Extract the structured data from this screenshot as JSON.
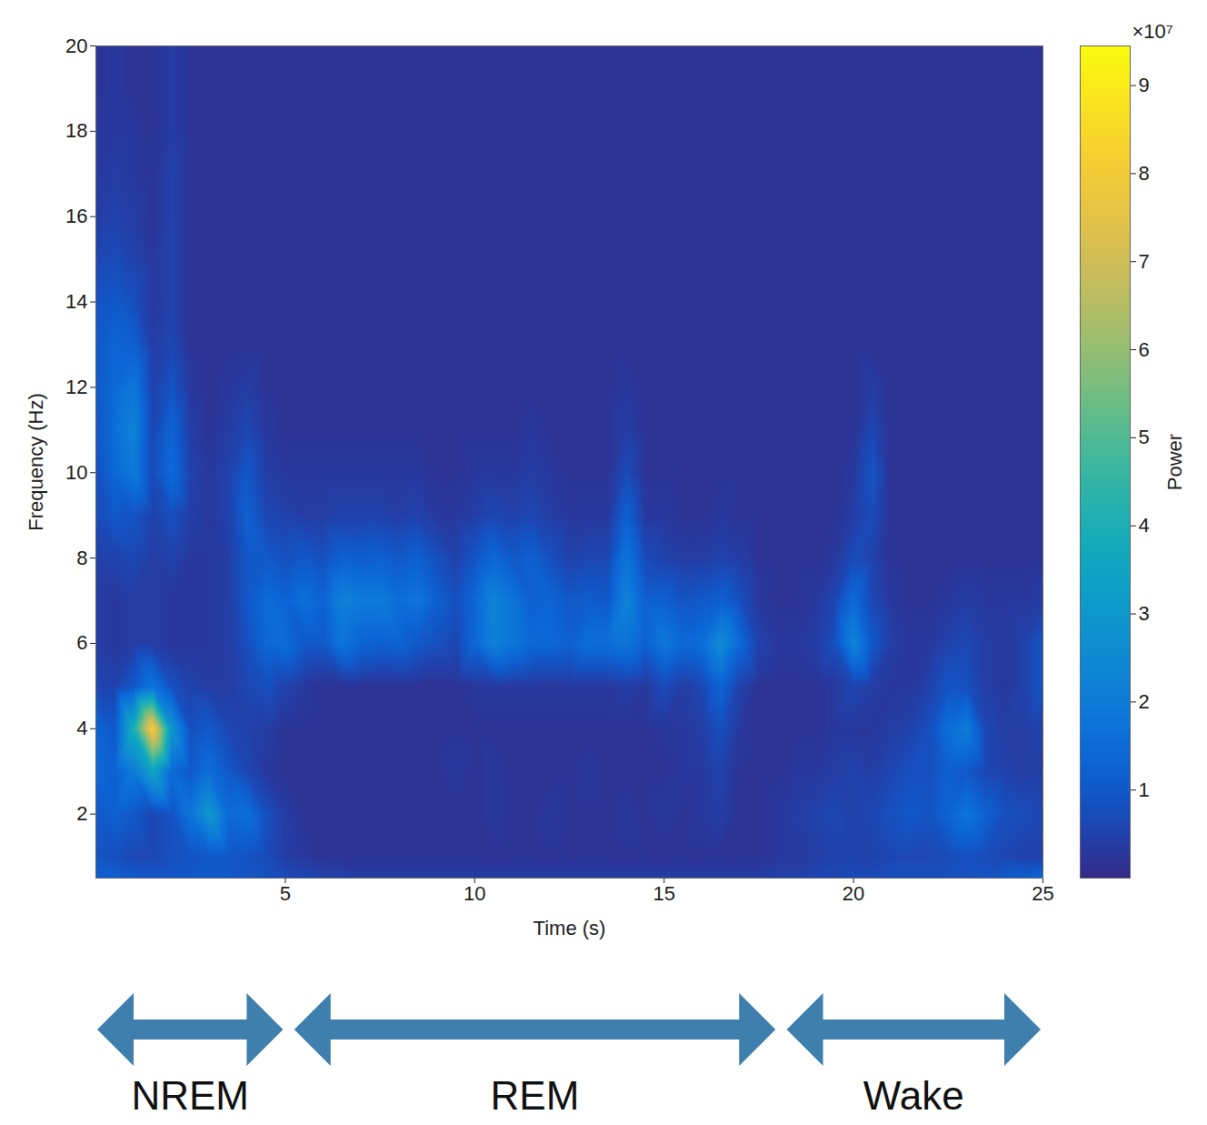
{
  "chart_data": {
    "type": "heatmap",
    "xlabel": "Time (s)",
    "ylabel": "Frequency (Hz)",
    "xlim": [
      0,
      25
    ],
    "xticks": [
      5,
      10,
      15,
      20,
      25
    ],
    "ylim": [
      0.5,
      20
    ],
    "yticks": [
      2,
      4,
      6,
      8,
      10,
      12,
      14,
      16,
      18,
      20
    ],
    "x": [
      0,
      0.5,
      1,
      1.5,
      2,
      2.5,
      3,
      3.5,
      4,
      4.5,
      5,
      5.5,
      6,
      6.5,
      7,
      7.5,
      8,
      8.5,
      9,
      9.5,
      10,
      10.5,
      11,
      11.5,
      12,
      12.5,
      13,
      13.5,
      14,
      14.5,
      15,
      15.5,
      16,
      16.5,
      17,
      17.5,
      18,
      18.5,
      19,
      19.5,
      20,
      20.5,
      21,
      21.5,
      22,
      22.5,
      23,
      23.5,
      24,
      24.5,
      25
    ],
    "y": [
      0.5,
      1,
      2,
      3,
      4,
      5,
      6,
      7,
      8,
      9,
      10,
      11,
      12,
      13,
      14,
      15,
      16,
      17,
      18,
      19,
      20
    ],
    "values": [
      [
        1.2,
        1.2,
        1.1,
        1.0,
        1.0,
        1.0,
        1.0,
        1.0,
        0.9,
        0.8,
        0.7,
        0.6,
        0.5,
        0.5,
        0.4,
        0.4,
        0.4,
        0.4,
        0.4,
        0.4,
        0.4,
        0.4,
        0.4,
        0.4,
        0.4,
        0.4,
        0.4,
        0.4,
        0.4,
        0.4,
        0.4,
        0.4,
        0.4,
        0.4,
        0.4,
        0.4,
        0.5,
        0.5,
        0.6,
        0.6,
        0.7,
        0.7,
        0.8,
        0.8,
        0.8,
        0.8,
        0.8,
        0.9,
        1.0,
        1.2,
        1.4
      ],
      [
        0.9,
        0.8,
        0.6,
        0.6,
        0.8,
        0.9,
        1.0,
        1.0,
        0.9,
        0.7,
        0.4,
        0.3,
        0.2,
        0.2,
        0.2,
        0.2,
        0.2,
        0.2,
        0.2,
        0.2,
        0.2,
        0.2,
        0.2,
        0.2,
        0.2,
        0.2,
        0.2,
        0.2,
        0.2,
        0.2,
        0.2,
        0.2,
        0.2,
        0.2,
        0.2,
        0.2,
        0.3,
        0.3,
        0.4,
        0.5,
        0.5,
        0.5,
        0.6,
        0.6,
        0.6,
        0.7,
        0.8,
        0.7,
        0.6,
        0.5,
        0.5
      ],
      [
        1.0,
        1.2,
        1.0,
        0.6,
        0.9,
        1.8,
        3.0,
        1.5,
        1.6,
        0.8,
        0.4,
        0.2,
        0.2,
        0.2,
        0.2,
        0.2,
        0.2,
        0.2,
        0.2,
        0.2,
        0.2,
        0.3,
        0.2,
        0.2,
        0.3,
        0.2,
        0.2,
        0.2,
        0.3,
        0.2,
        0.3,
        0.2,
        0.3,
        0.4,
        0.2,
        0.2,
        0.3,
        0.4,
        0.5,
        0.6,
        0.5,
        0.6,
        0.8,
        1.0,
        0.9,
        1.3,
        1.8,
        1.2,
        0.8,
        0.7,
        0.6
      ],
      [
        1.4,
        1.2,
        2.0,
        3.5,
        1.5,
        1.0,
        1.6,
        1.0,
        0.6,
        0.3,
        0.2,
        0.2,
        0.2,
        0.2,
        0.2,
        0.2,
        0.2,
        0.2,
        0.2,
        0.3,
        0.2,
        0.3,
        0.2,
        0.2,
        0.2,
        0.2,
        0.3,
        0.2,
        0.2,
        0.2,
        0.2,
        0.3,
        0.3,
        0.5,
        0.2,
        0.2,
        0.2,
        0.3,
        0.3,
        0.4,
        0.5,
        0.4,
        0.6,
        0.8,
        0.8,
        1.2,
        1.0,
        0.6,
        0.5,
        0.4,
        0.4
      ],
      [
        1.3,
        1.0,
        4.0,
        8.2,
        3.0,
        0.8,
        1.0,
        0.6,
        0.5,
        0.4,
        0.2,
        0.2,
        0.2,
        0.2,
        0.2,
        0.2,
        0.2,
        0.2,
        0.2,
        0.2,
        0.2,
        0.2,
        0.2,
        0.2,
        0.2,
        0.2,
        0.2,
        0.2,
        0.2,
        0.2,
        0.3,
        0.3,
        0.4,
        0.8,
        0.3,
        0.2,
        0.2,
        0.2,
        0.2,
        0.3,
        0.3,
        0.3,
        0.4,
        0.5,
        0.8,
        1.6,
        2.0,
        0.6,
        0.4,
        0.4,
        0.5
      ],
      [
        0.6,
        0.5,
        1.0,
        1.8,
        0.8,
        0.5,
        0.4,
        0.4,
        0.6,
        0.8,
        0.5,
        0.3,
        0.2,
        0.2,
        0.2,
        0.2,
        0.2,
        0.2,
        0.2,
        0.2,
        0.3,
        0.3,
        0.3,
        0.3,
        0.3,
        0.3,
        0.3,
        0.3,
        0.4,
        0.3,
        0.7,
        0.4,
        0.6,
        1.3,
        0.5,
        0.2,
        0.2,
        0.2,
        0.2,
        0.3,
        0.6,
        0.4,
        0.3,
        0.3,
        0.5,
        0.9,
        0.8,
        0.4,
        0.3,
        0.5,
        0.9
      ],
      [
        0.4,
        0.3,
        0.4,
        0.4,
        0.3,
        0.3,
        0.3,
        0.4,
        0.8,
        1.4,
        1.6,
        1.0,
        1.0,
        1.8,
        1.3,
        1.2,
        1.3,
        1.0,
        0.8,
        0.6,
        1.4,
        2.2,
        1.8,
        1.4,
        1.4,
        1.2,
        1.6,
        1.6,
        1.8,
        1.2,
        1.9,
        1.4,
        1.6,
        2.6,
        1.4,
        0.5,
        0.3,
        0.3,
        0.4,
        0.8,
        2.3,
        1.0,
        0.4,
        0.3,
        0.3,
        0.5,
        0.6,
        0.4,
        0.3,
        0.5,
        0.9
      ],
      [
        0.4,
        0.3,
        0.4,
        0.4,
        0.3,
        0.3,
        0.3,
        0.4,
        1.0,
        1.5,
        1.3,
        1.6,
        1.3,
        2.2,
        2.0,
        2.0,
        1.6,
        1.8,
        1.2,
        0.8,
        1.4,
        2.3,
        1.8,
        1.2,
        1.3,
        1.0,
        1.1,
        1.0,
        2.3,
        1.2,
        1.2,
        0.9,
        1.0,
        1.2,
        0.8,
        0.3,
        0.2,
        0.2,
        0.3,
        0.6,
        1.5,
        0.6,
        0.3,
        0.2,
        0.2,
        0.3,
        0.4,
        0.3,
        0.3,
        0.3,
        0.4
      ],
      [
        0.5,
        0.5,
        0.6,
        0.4,
        0.5,
        0.3,
        0.3,
        0.4,
        1.0,
        1.0,
        0.8,
        1.0,
        0.8,
        1.2,
        1.1,
        1.2,
        1.0,
        1.2,
        0.8,
        0.5,
        0.9,
        1.4,
        1.0,
        1.2,
        0.8,
        0.5,
        0.6,
        0.6,
        1.8,
        0.7,
        0.5,
        0.4,
        0.4,
        0.5,
        0.4,
        0.2,
        0.2,
        0.2,
        0.2,
        0.3,
        0.7,
        0.5,
        0.2,
        0.2,
        0.2,
        0.2,
        0.2,
        0.2,
        0.2,
        0.2,
        0.2
      ],
      [
        0.7,
        1.0,
        0.9,
        0.5,
        0.8,
        0.4,
        0.3,
        0.5,
        1.2,
        0.6,
        0.5,
        0.4,
        0.4,
        0.5,
        0.5,
        0.5,
        0.4,
        0.5,
        0.3,
        0.3,
        0.4,
        0.6,
        0.5,
        0.6,
        0.4,
        0.3,
        0.3,
        0.3,
        1.2,
        0.3,
        0.3,
        0.2,
        0.2,
        0.3,
        0.2,
        0.2,
        0.2,
        0.2,
        0.2,
        0.2,
        0.4,
        0.7,
        0.2,
        0.2,
        0.2,
        0.2,
        0.2,
        0.2,
        0.2,
        0.2,
        0.2
      ],
      [
        0.8,
        1.4,
        2.0,
        0.7,
        1.5,
        0.5,
        0.3,
        0.5,
        1.0,
        0.4,
        0.3,
        0.3,
        0.3,
        0.3,
        0.3,
        0.3,
        0.3,
        0.3,
        0.2,
        0.2,
        0.3,
        0.3,
        0.3,
        0.4,
        0.3,
        0.2,
        0.2,
        0.2,
        0.7,
        0.2,
        0.2,
        0.2,
        0.2,
        0.2,
        0.2,
        0.2,
        0.2,
        0.2,
        0.2,
        0.2,
        0.3,
        0.9,
        0.2,
        0.2,
        0.2,
        0.2,
        0.2,
        0.2,
        0.2,
        0.2,
        0.2
      ],
      [
        0.9,
        1.6,
        2.3,
        0.6,
        1.3,
        0.4,
        0.2,
        0.4,
        0.6,
        0.3,
        0.2,
        0.2,
        0.2,
        0.2,
        0.2,
        0.2,
        0.2,
        0.2,
        0.2,
        0.2,
        0.2,
        0.2,
        0.2,
        0.3,
        0.2,
        0.2,
        0.2,
        0.2,
        0.4,
        0.2,
        0.2,
        0.2,
        0.2,
        0.2,
        0.2,
        0.2,
        0.2,
        0.2,
        0.2,
        0.2,
        0.2,
        0.6,
        0.2,
        0.2,
        0.2,
        0.2,
        0.2,
        0.2,
        0.2,
        0.2,
        0.2
      ],
      [
        1.0,
        1.5,
        1.8,
        0.5,
        0.9,
        0.3,
        0.2,
        0.3,
        0.4,
        0.2,
        0.2,
        0.2,
        0.2,
        0.2,
        0.2,
        0.2,
        0.2,
        0.2,
        0.2,
        0.2,
        0.2,
        0.2,
        0.2,
        0.2,
        0.2,
        0.2,
        0.2,
        0.2,
        0.3,
        0.2,
        0.2,
        0.2,
        0.2,
        0.2,
        0.2,
        0.2,
        0.2,
        0.2,
        0.2,
        0.2,
        0.2,
        0.4,
        0.2,
        0.2,
        0.2,
        0.2,
        0.2,
        0.2,
        0.2,
        0.2,
        0.2
      ],
      [
        1.0,
        1.3,
        1.2,
        0.4,
        0.6,
        0.2,
        0.2,
        0.2,
        0.2,
        0.2,
        0.2,
        0.2,
        0.2,
        0.2,
        0.2,
        0.2,
        0.2,
        0.2,
        0.2,
        0.2,
        0.2,
        0.2,
        0.2,
        0.2,
        0.2,
        0.2,
        0.2,
        0.2,
        0.2,
        0.2,
        0.2,
        0.2,
        0.2,
        0.2,
        0.2,
        0.2,
        0.2,
        0.2,
        0.2,
        0.2,
        0.2,
        0.2,
        0.2,
        0.2,
        0.2,
        0.2,
        0.2,
        0.2,
        0.2,
        0.2,
        0.2
      ],
      [
        0.9,
        1.0,
        0.8,
        0.3,
        0.5,
        0.2,
        0.2,
        0.2,
        0.2,
        0.2,
        0.2,
        0.2,
        0.2,
        0.2,
        0.2,
        0.2,
        0.2,
        0.2,
        0.2,
        0.2,
        0.2,
        0.2,
        0.2,
        0.2,
        0.2,
        0.2,
        0.2,
        0.2,
        0.2,
        0.2,
        0.2,
        0.2,
        0.2,
        0.2,
        0.2,
        0.2,
        0.2,
        0.2,
        0.2,
        0.2,
        0.2,
        0.2,
        0.2,
        0.2,
        0.2,
        0.2,
        0.2,
        0.2,
        0.2,
        0.2,
        0.2
      ],
      [
        0.6,
        0.7,
        0.5,
        0.3,
        0.5,
        0.2,
        0.2,
        0.2,
        0.2,
        0.2,
        0.2,
        0.2,
        0.2,
        0.2,
        0.2,
        0.2,
        0.2,
        0.2,
        0.2,
        0.2,
        0.2,
        0.2,
        0.2,
        0.2,
        0.2,
        0.2,
        0.2,
        0.2,
        0.2,
        0.2,
        0.2,
        0.2,
        0.2,
        0.2,
        0.2,
        0.2,
        0.2,
        0.2,
        0.2,
        0.2,
        0.2,
        0.2,
        0.2,
        0.2,
        0.2,
        0.2,
        0.2,
        0.2,
        0.2,
        0.2,
        0.2
      ],
      [
        0.4,
        0.5,
        0.4,
        0.2,
        0.5,
        0.2,
        0.2,
        0.2,
        0.2,
        0.2,
        0.2,
        0.2,
        0.2,
        0.2,
        0.2,
        0.2,
        0.2,
        0.2,
        0.2,
        0.2,
        0.2,
        0.2,
        0.2,
        0.2,
        0.2,
        0.2,
        0.2,
        0.2,
        0.2,
        0.2,
        0.2,
        0.2,
        0.2,
        0.2,
        0.2,
        0.2,
        0.2,
        0.2,
        0.2,
        0.2,
        0.2,
        0.2,
        0.2,
        0.2,
        0.2,
        0.2,
        0.2,
        0.2,
        0.2,
        0.2,
        0.2
      ],
      [
        0.3,
        0.4,
        0.3,
        0.2,
        0.5,
        0.2,
        0.2,
        0.2,
        0.2,
        0.2,
        0.2,
        0.2,
        0.2,
        0.2,
        0.2,
        0.2,
        0.2,
        0.2,
        0.2,
        0.2,
        0.2,
        0.2,
        0.2,
        0.2,
        0.2,
        0.2,
        0.2,
        0.2,
        0.2,
        0.2,
        0.2,
        0.2,
        0.2,
        0.2,
        0.2,
        0.2,
        0.2,
        0.2,
        0.2,
        0.2,
        0.2,
        0.2,
        0.2,
        0.2,
        0.2,
        0.2,
        0.2,
        0.2,
        0.2,
        0.2,
        0.2
      ],
      [
        0.3,
        0.3,
        0.3,
        0.2,
        0.4,
        0.2,
        0.2,
        0.2,
        0.2,
        0.2,
        0.2,
        0.2,
        0.2,
        0.2,
        0.2,
        0.2,
        0.2,
        0.2,
        0.2,
        0.2,
        0.2,
        0.2,
        0.2,
        0.2,
        0.2,
        0.2,
        0.2,
        0.2,
        0.2,
        0.2,
        0.2,
        0.2,
        0.2,
        0.2,
        0.2,
        0.2,
        0.2,
        0.2,
        0.2,
        0.2,
        0.2,
        0.2,
        0.2,
        0.2,
        0.2,
        0.2,
        0.2,
        0.2,
        0.2,
        0.2,
        0.2
      ],
      [
        0.2,
        0.3,
        0.2,
        0.2,
        0.4,
        0.2,
        0.2,
        0.2,
        0.2,
        0.2,
        0.2,
        0.2,
        0.2,
        0.2,
        0.2,
        0.2,
        0.2,
        0.2,
        0.2,
        0.2,
        0.2,
        0.2,
        0.2,
        0.2,
        0.2,
        0.2,
        0.2,
        0.2,
        0.2,
        0.2,
        0.2,
        0.2,
        0.2,
        0.2,
        0.2,
        0.2,
        0.2,
        0.2,
        0.2,
        0.2,
        0.2,
        0.2,
        0.2,
        0.2,
        0.2,
        0.2,
        0.2,
        0.2,
        0.2,
        0.2,
        0.2
      ],
      [
        0.2,
        0.3,
        0.2,
        0.2,
        0.4,
        0.2,
        0.2,
        0.2,
        0.2,
        0.2,
        0.2,
        0.2,
        0.2,
        0.2,
        0.2,
        0.2,
        0.2,
        0.2,
        0.2,
        0.2,
        0.2,
        0.2,
        0.2,
        0.2,
        0.2,
        0.2,
        0.2,
        0.2,
        0.2,
        0.2,
        0.2,
        0.2,
        0.2,
        0.2,
        0.2,
        0.2,
        0.2,
        0.2,
        0.2,
        0.2,
        0.2,
        0.2,
        0.2,
        0.2,
        0.2,
        0.2,
        0.2,
        0.2,
        0.2,
        0.2,
        0.2
      ]
    ],
    "colorbar_label": "Power",
    "colorbar_lim": [
      0,
      9.45
    ],
    "colorbar_ticks": [
      1,
      2,
      3,
      4,
      5,
      6,
      7,
      8,
      9
    ],
    "colorbar_multiplier": "×10⁷",
    "annotations": [
      {
        "label": "NREM",
        "x_start": 0,
        "x_end": 5
      },
      {
        "label": "REM",
        "x_start": 5.2,
        "x_end": 18
      },
      {
        "label": "Wake",
        "x_start": 18.2,
        "x_end": 25
      }
    ]
  }
}
